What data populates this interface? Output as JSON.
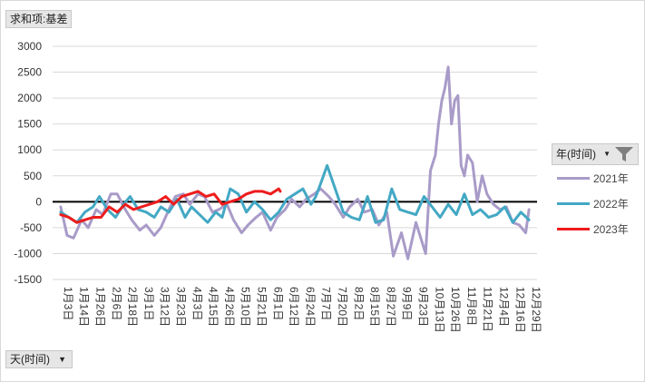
{
  "value_field": {
    "label": "求和项:基差"
  },
  "axis_field": {
    "label": "天(时间)"
  },
  "legend": {
    "title": "年(时间)",
    "items": [
      {
        "name": "2021年",
        "color": "#a99bc8"
      },
      {
        "name": "2022年",
        "color": "#43a8c4"
      },
      {
        "name": "2023年",
        "color": "#ee1c1c"
      }
    ]
  },
  "chart_data": {
    "type": "line",
    "title": "",
    "xlabel": "",
    "ylabel": "",
    "ylim": [
      -1500,
      3000
    ],
    "yticks": [
      -1500,
      -1000,
      -500,
      0,
      500,
      1000,
      1500,
      2000,
      2500,
      3000
    ],
    "grid": true,
    "legend_position": "right",
    "x_ticks": [
      "1月3日",
      "1月14日",
      "1月26日",
      "2月6日",
      "2月18日",
      "3月1日",
      "3月12日",
      "3月23日",
      "4月3日",
      "4月15日",
      "4月26日",
      "5月10日",
      "5月21日",
      "6月1日",
      "6月12日",
      "6月24日",
      "7月7日",
      "7月20日",
      "8月2日",
      "8月15日",
      "8月27日",
      "9月9日",
      "9月23日",
      "10月13日",
      "10月26日",
      "11月8日",
      "11月21日",
      "12月4日",
      "12月16日",
      "12月29日"
    ],
    "series": [
      {
        "name": "2021年",
        "color": "#a99bc8",
        "x": [
          0,
          0.4,
          0.8,
          1.3,
          1.7,
          2.2,
          2.6,
          3.1,
          3.5,
          4,
          4.4,
          4.9,
          5.3,
          5.8,
          6.2,
          6.7,
          7.1,
          7.6,
          8,
          8.5,
          8.9,
          9.4,
          9.8,
          10.3,
          10.7,
          11.2,
          11.6,
          12.1,
          12.5,
          13,
          13.4,
          13.9,
          14.3,
          14.8,
          15.2,
          15.7,
          16.1,
          16.6,
          17,
          17.5,
          17.9,
          18.4,
          18.8,
          19.3,
          19.7,
          20.2,
          20.6,
          21.1,
          21.5,
          22,
          22.4,
          22.6,
          22.9,
          23.2,
          23.4,
          23.6,
          23.8,
          24,
          24.2,
          24.4,
          24.6,
          24.8,
          25,
          25.2,
          25.5,
          25.8,
          26.1,
          26.4,
          26.8,
          27.2,
          27.6,
          28,
          28.4,
          28.8,
          29
        ],
        "y": [
          -100,
          -650,
          -700,
          -350,
          -500,
          -150,
          -250,
          150,
          150,
          -150,
          -350,
          -550,
          -450,
          -650,
          -500,
          -150,
          100,
          150,
          -50,
          150,
          100,
          -200,
          -150,
          -50,
          -350,
          -600,
          -450,
          -300,
          -200,
          -550,
          -300,
          -150,
          50,
          -100,
          50,
          150,
          250,
          100,
          -50,
          -300,
          -100,
          50,
          -200,
          -150,
          -450,
          -200,
          -1050,
          -600,
          -1100,
          -400,
          -800,
          -1000,
          600,
          900,
          1500,
          1950,
          2200,
          2600,
          1500,
          1950,
          2050,
          700,
          500,
          900,
          750,
          0,
          500,
          150,
          -50,
          -150,
          -100,
          -400,
          -450,
          -600,
          -150
        ]
      },
      {
        "name": "2022年",
        "color": "#43a8c4",
        "x": [
          0,
          0.5,
          1,
          1.5,
          2,
          2.4,
          2.9,
          3.4,
          3.9,
          4.3,
          4.8,
          5.3,
          5.8,
          6.2,
          6.7,
          7.2,
          7.7,
          8.1,
          8.6,
          9.1,
          9.6,
          10,
          10.5,
          11,
          11.5,
          12,
          12.5,
          13,
          13.5,
          14,
          14.5,
          15,
          15.5,
          15.8,
          16.1,
          16.5,
          17,
          17.5,
          18,
          18.5,
          19,
          19.5,
          20,
          20.5,
          21,
          21.5,
          22,
          22.5,
          23,
          23.5,
          24,
          24.5,
          25,
          25.5,
          26,
          26.5,
          27,
          27.5,
          28,
          28.5,
          29
        ],
        "y": [
          -200,
          -300,
          -400,
          -200,
          -100,
          100,
          -150,
          -300,
          -50,
          100,
          -150,
          -200,
          -300,
          -100,
          -200,
          50,
          -300,
          -100,
          -250,
          -400,
          -200,
          -300,
          250,
          150,
          -200,
          0,
          -150,
          -350,
          -200,
          50,
          150,
          250,
          -50,
          100,
          350,
          700,
          250,
          -200,
          -300,
          -350,
          100,
          -400,
          -350,
          250,
          -150,
          -200,
          -250,
          100,
          -100,
          -300,
          -50,
          -250,
          150,
          -250,
          -150,
          -300,
          -250,
          -100,
          -400,
          -200,
          -350
        ]
      },
      {
        "name": "2023年",
        "color": "#ee1c1c",
        "x": [
          0,
          0.5,
          1,
          1.5,
          2,
          2.5,
          3,
          3.5,
          4,
          4.5,
          5,
          5.5,
          6,
          6.5,
          7,
          7.5,
          8,
          8.5,
          9,
          9.5,
          10,
          10.5,
          11,
          11.5,
          12,
          12.5,
          13,
          13.5,
          13.6
        ],
        "y": [
          -250,
          -300,
          -400,
          -350,
          -300,
          -300,
          -100,
          -200,
          -50,
          -150,
          -100,
          -50,
          0,
          100,
          -50,
          100,
          150,
          200,
          100,
          150,
          -50,
          0,
          50,
          150,
          200,
          200,
          150,
          250,
          200
        ]
      }
    ]
  }
}
